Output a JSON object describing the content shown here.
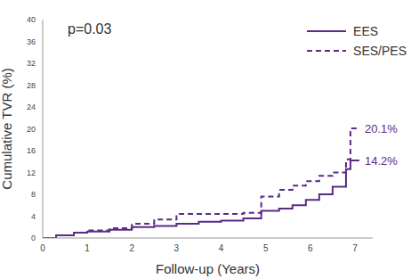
{
  "chart_data": {
    "type": "line",
    "x_label": "Follow-up (Years)",
    "y_label": "Cumulative TVR (%)",
    "x": [
      0,
      0.3,
      0.7,
      1,
      1.5,
      2,
      2.5,
      3,
      3.5,
      4,
      4.5,
      4.9,
      5.3,
      5.6,
      5.9,
      6.2,
      6.5,
      6.6,
      6.8,
      6.9,
      7.1
    ],
    "series": [
      {
        "name": "EES",
        "color": "#5b2a86",
        "line_style": "solid",
        "values": [
          0,
          0.5,
          1,
          1.2,
          1.5,
          2,
          2.2,
          2.6,
          3,
          3.2,
          3.6,
          5,
          5.4,
          6,
          7,
          8,
          9.4,
          9.4,
          12.6,
          14.2,
          14.2
        ]
      },
      {
        "name": "SES/PES",
        "color": "#5b2a86",
        "line_style": "dashed",
        "values": [
          0,
          0.5,
          1,
          1.4,
          1.8,
          2.6,
          3.4,
          4.4,
          4.4,
          4.4,
          4.6,
          7.6,
          8.8,
          9.6,
          10.4,
          11.4,
          12,
          12,
          14.4,
          20.1,
          20.1
        ]
      }
    ],
    "xlim": [
      0,
      7.4
    ],
    "xticks": [
      0,
      1,
      2,
      3,
      4,
      5,
      6,
      7
    ],
    "ylim": [
      0,
      40
    ],
    "yticks": [
      0,
      4,
      8,
      12,
      16,
      20,
      24,
      28,
      32,
      36,
      40
    ],
    "grid": false,
    "legend": "upper right",
    "annotations": [
      {
        "text": "p=0.03"
      },
      {
        "text": "20.1%",
        "x": 7.1,
        "y": 20.1,
        "color": "#5b2a86"
      },
      {
        "text": "14.2%",
        "x": 7.1,
        "y": 14.2,
        "color": "#5b2a86"
      }
    ]
  }
}
